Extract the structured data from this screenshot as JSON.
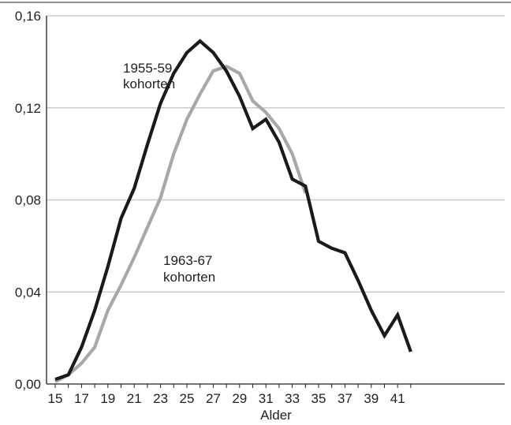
{
  "chart_data": {
    "type": "line",
    "title": "",
    "xlabel": "Alder",
    "ylabel": "",
    "xlim": [
      15,
      42
    ],
    "ylim": [
      0,
      0.16
    ],
    "x_ticks": [
      15,
      17,
      19,
      21,
      23,
      25,
      27,
      29,
      31,
      33,
      35,
      37,
      39,
      41
    ],
    "x_tick_labels": [
      "15",
      "17",
      "19",
      "21",
      "23",
      "25",
      "27",
      "29",
      "31",
      "33",
      "35",
      "37",
      "39",
      "41"
    ],
    "y_ticks": [
      0,
      0.04,
      0.08,
      0.12,
      0.16
    ],
    "y_tick_labels": [
      "0,00",
      "0,04",
      "0,08",
      "0,12",
      "0,16"
    ],
    "grid": "horizontal",
    "legend": "none",
    "series": [
      {
        "name": "1955-59 kohorten",
        "label_lines": [
          "1955-59",
          "kohorten"
        ],
        "color": "#1a1a1a",
        "x": [
          15,
          16,
          17,
          18,
          19,
          20,
          21,
          22,
          23,
          24,
          25,
          26,
          27,
          28,
          29,
          30,
          31,
          32,
          33,
          34,
          35,
          36,
          37,
          38,
          39,
          40,
          41,
          42
        ],
        "y": [
          0.002,
          0.004,
          0.016,
          0.032,
          0.051,
          0.072,
          0.085,
          0.104,
          0.122,
          0.135,
          0.144,
          0.149,
          0.144,
          0.136,
          0.125,
          0.111,
          0.115,
          0.105,
          0.089,
          0.086,
          0.062,
          0.059,
          0.057,
          0.045,
          0.032,
          0.021,
          0.03,
          0.014
        ]
      },
      {
        "name": "1963-67 kohorten",
        "label_lines": [
          "1963-67",
          "kohorten"
        ],
        "color": "#a8a8a8",
        "x": [
          15,
          16,
          17,
          18,
          19,
          20,
          21,
          22,
          23,
          24,
          25,
          26,
          27,
          28,
          29,
          30,
          31,
          32,
          33,
          34
        ],
        "y": [
          0.001,
          0.004,
          0.009,
          0.016,
          0.032,
          0.043,
          0.055,
          0.068,
          0.081,
          0.1,
          0.115,
          0.126,
          0.136,
          0.138,
          0.135,
          0.123,
          0.118,
          0.111,
          0.1,
          0.083
        ]
      }
    ]
  },
  "colors": {
    "grid": "#cccccc",
    "axis": "#222222"
  }
}
